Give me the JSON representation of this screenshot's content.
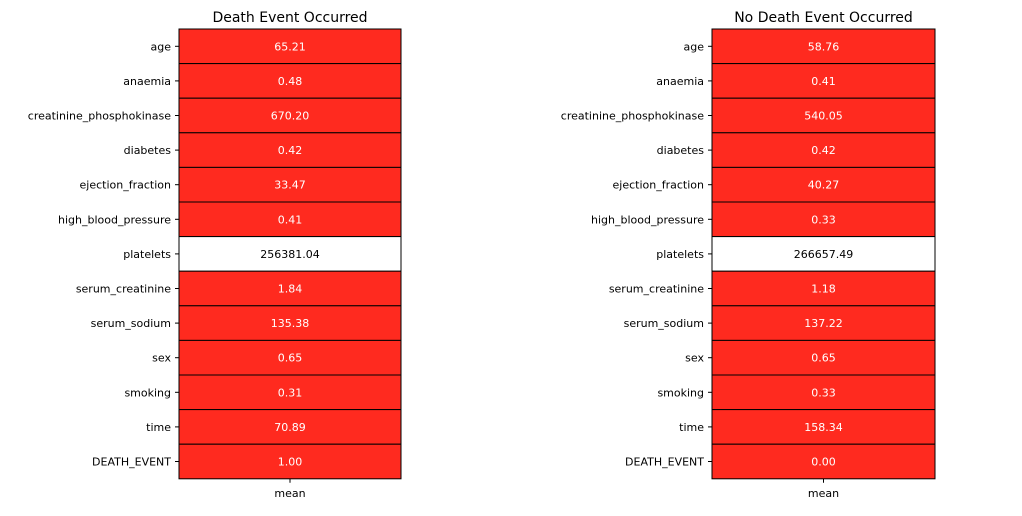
{
  "chart_data": [
    {
      "type": "heatmap",
      "title": "Death Event Occurred",
      "x_categories": [
        "mean"
      ],
      "y_categories": [
        "age",
        "anaemia",
        "creatinine_phosphokinase",
        "diabetes",
        "ejection_fraction",
        "high_blood_pressure",
        "platelets",
        "serum_creatinine",
        "serum_sodium",
        "sex",
        "smoking",
        "time",
        "DEATH_EVENT"
      ],
      "values": [
        65.21,
        0.48,
        670.2,
        0.42,
        33.47,
        0.41,
        256381.04,
        1.84,
        135.38,
        0.65,
        0.31,
        70.89,
        1.0
      ],
      "labels": [
        "65.21",
        "0.48",
        "670.20",
        "0.42",
        "33.47",
        "0.41",
        "256381.04",
        "1.84",
        "135.38",
        "0.65",
        "0.31",
        "70.89",
        "1.00"
      ],
      "grid": false,
      "colors": {
        "default_fill": "#ff2a1f",
        "default_text": "#ffffff",
        "max_fill": "#ffffff",
        "max_text": "#000000",
        "cell_border": "#000000"
      }
    },
    {
      "type": "heatmap",
      "title": "No Death Event Occurred",
      "x_categories": [
        "mean"
      ],
      "y_categories": [
        "age",
        "anaemia",
        "creatinine_phosphokinase",
        "diabetes",
        "ejection_fraction",
        "high_blood_pressure",
        "platelets",
        "serum_creatinine",
        "serum_sodium",
        "sex",
        "smoking",
        "time",
        "DEATH_EVENT"
      ],
      "values": [
        58.76,
        0.41,
        540.05,
        0.42,
        40.27,
        0.33,
        266657.49,
        1.18,
        137.22,
        0.65,
        0.33,
        158.34,
        0.0
      ],
      "labels": [
        "58.76",
        "0.41",
        "540.05",
        "0.42",
        "40.27",
        "0.33",
        "266657.49",
        "1.18",
        "137.22",
        "0.65",
        "0.33",
        "158.34",
        "0.00"
      ],
      "grid": false,
      "colors": {
        "default_fill": "#ff2a1f",
        "default_text": "#ffffff",
        "max_fill": "#ffffff",
        "max_text": "#000000",
        "cell_border": "#000000"
      }
    }
  ]
}
